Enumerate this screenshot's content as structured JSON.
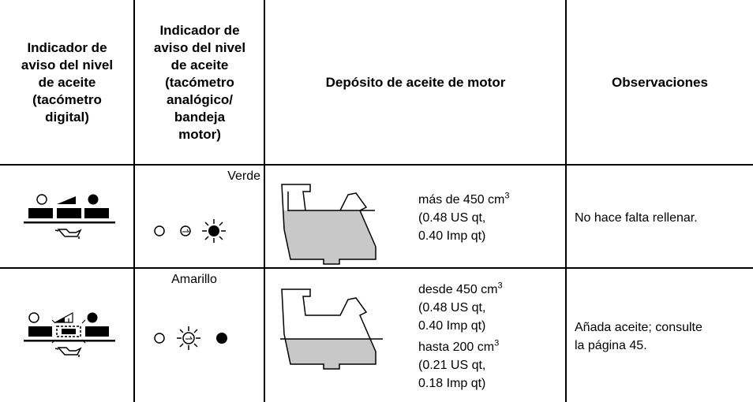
{
  "table": {
    "headers": [
      [
        "Indicador de",
        "aviso del nivel",
        "de aceite",
        "(tacómetro",
        "digital)"
      ],
      [
        "Indicador de",
        "aviso del nivel",
        "de aceite",
        "(tacómetro",
        "analógico/",
        "bandeja",
        "motor)"
      ],
      [
        "Depósito de aceite de motor"
      ],
      [
        "Observaciones"
      ]
    ],
    "rows": [
      {
        "indicator_color": "Verde",
        "tank_groups": [
          [
            [
              "más de 450 cm",
              "3"
            ],
            [
              "(0.48 US qt,"
            ],
            [
              "0.40 Imp qt)"
            ]
          ]
        ],
        "observations": [
          "No hace falta rellenar."
        ]
      },
      {
        "indicator_color": "Amarillo",
        "tank_groups": [
          [
            [
              "desde 450 cm",
              "3"
            ],
            [
              "(0.48 US qt,"
            ],
            [
              "0.40 Imp qt)"
            ]
          ],
          [
            [
              "hasta 200 cm",
              "3"
            ],
            [
              "(0.21 US qt,"
            ],
            [
              "0.18 Imp qt)"
            ]
          ]
        ],
        "observations": [
          "Añada aceite; consulte",
          "la página 45."
        ]
      }
    ]
  }
}
